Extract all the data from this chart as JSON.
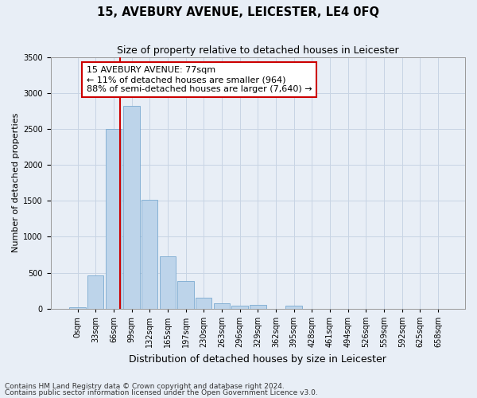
{
  "title": "15, AVEBURY AVENUE, LEICESTER, LE4 0FQ",
  "subtitle": "Size of property relative to detached houses in Leicester",
  "xlabel": "Distribution of detached houses by size in Leicester",
  "ylabel": "Number of detached properties",
  "footnote1": "Contains HM Land Registry data © Crown copyright and database right 2024.",
  "footnote2": "Contains public sector information licensed under the Open Government Licence v3.0.",
  "bar_labels": [
    "0sqm",
    "33sqm",
    "66sqm",
    "99sqm",
    "132sqm",
    "165sqm",
    "197sqm",
    "230sqm",
    "263sqm",
    "296sqm",
    "329sqm",
    "362sqm",
    "395sqm",
    "428sqm",
    "461sqm",
    "494sqm",
    "526sqm",
    "559sqm",
    "592sqm",
    "625sqm",
    "658sqm"
  ],
  "bar_values": [
    20,
    460,
    2500,
    2820,
    1510,
    730,
    380,
    155,
    75,
    45,
    50,
    0,
    45,
    0,
    0,
    0,
    0,
    0,
    0,
    0,
    0
  ],
  "bar_color": "#bdd4ea",
  "bar_edge_color": "#7aaad0",
  "ylim": [
    0,
    3500
  ],
  "yticks": [
    0,
    500,
    1000,
    1500,
    2000,
    2500,
    3000,
    3500
  ],
  "property_line_x": 2.35,
  "annotation_title": "15 AVEBURY AVENUE: 77sqm",
  "annotation_line1": "← 11% of detached houses are smaller (964)",
  "annotation_line2": "88% of semi-detached houses are larger (7,640) →",
  "annotation_box_color": "#ffffff",
  "annotation_box_edge": "#cc0000",
  "vline_color": "#cc0000",
  "grid_color": "#c8d4e4",
  "background_color": "#e8eef6",
  "title_fontsize": 10.5,
  "subtitle_fontsize": 9,
  "ylabel_fontsize": 8,
  "xlabel_fontsize": 9,
  "tick_fontsize": 7,
  "annotation_fontsize": 8,
  "footnote_fontsize": 6.5
}
